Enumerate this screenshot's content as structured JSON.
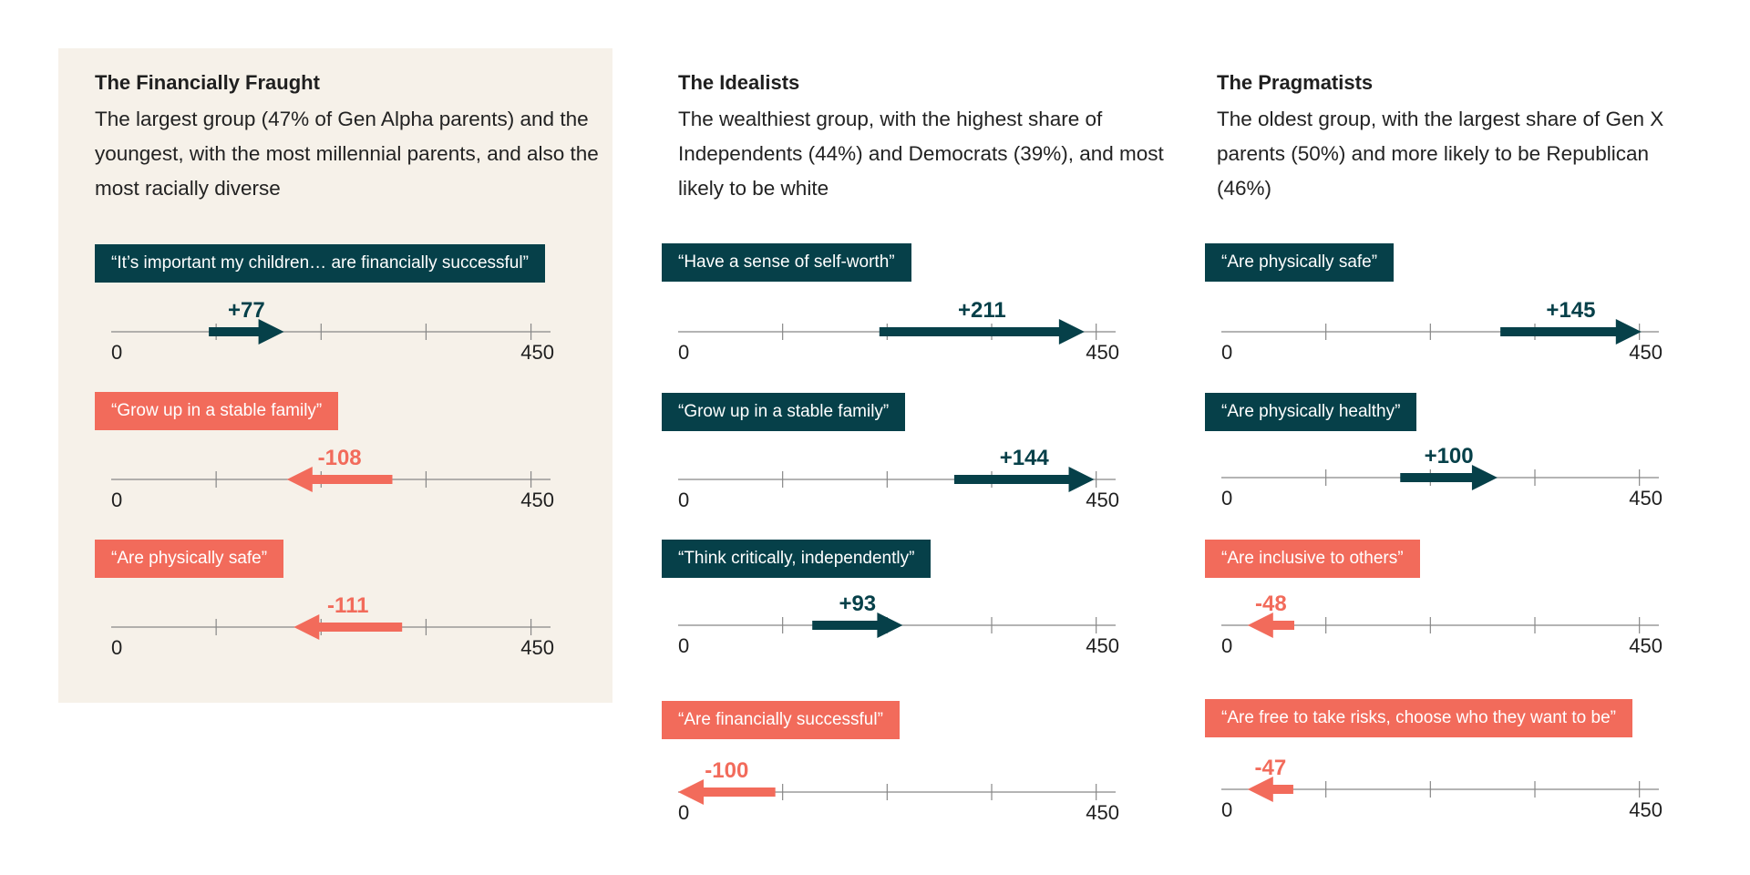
{
  "colors": {
    "positive": "#064049",
    "negative": "#f26b5b",
    "panel_bg": "#f6f1e9",
    "axis": "#888888"
  },
  "axis": {
    "min": 0,
    "max": 450,
    "tick_step": 107.5,
    "min_label": "0",
    "max_label": "450"
  },
  "chart_data": [
    {
      "type": "arrow-range",
      "title": "The Financially Fraught",
      "description": "The largest group (47% of Gen Alpha parents) and the youngest, with the most millennial parents, and also the most racially diverse",
      "items": [
        {
          "label": "“It’s important my children… are financially successful”",
          "value_text": "+77",
          "value": 77,
          "start": 100,
          "end": 177,
          "direction": "positive"
        },
        {
          "label": "“Grow up in a stable family”",
          "value_text": "-108",
          "value": -108,
          "start": 288,
          "end": 180,
          "direction": "negative"
        },
        {
          "label": "“Are physically safe”",
          "value_text": "-111",
          "value": -111,
          "start": 298,
          "end": 187,
          "direction": "negative"
        }
      ]
    },
    {
      "type": "arrow-range",
      "title": "The Idealists",
      "description": "The wealthiest group, with the highest share of Independents (44%) and Democrats (39%), and most likely to be white",
      "items": [
        {
          "label": "“Have a sense of self-worth”",
          "value_text": "+211",
          "value": 211,
          "start": 207,
          "end": 418,
          "direction": "positive"
        },
        {
          "label": "“Grow up in a stable family”",
          "value_text": "+144",
          "value": 144,
          "start": 284,
          "end": 428,
          "direction": "positive"
        },
        {
          "label": "“Think critically, independently”",
          "value_text": "+93",
          "value": 93,
          "start": 138,
          "end": 231,
          "direction": "positive"
        },
        {
          "label": "“Are financially successful”",
          "value_text": "-100",
          "value": -100,
          "start": 100,
          "end": 0,
          "direction": "negative"
        }
      ]
    },
    {
      "type": "arrow-range",
      "title": "The Pragmatists",
      "description": "The oldest group, with the largest share of Gen X parents (50%) and more likely to be Republican (46%)",
      "items": [
        {
          "label": "“Are physically safe”",
          "value_text": "+145",
          "value": 145,
          "start": 287,
          "end": 432,
          "direction": "positive"
        },
        {
          "label": "“Are physically healthy”",
          "value_text": "+100",
          "value": 100,
          "start": 184,
          "end": 284,
          "direction": "positive"
        },
        {
          "label": "“Are inclusive to others”",
          "value_text": "-48",
          "value": -48,
          "start": 75,
          "end": 27,
          "direction": "negative"
        },
        {
          "label": "“Are free to take risks, choose who they want to be”",
          "value_text": "-47",
          "value": -47,
          "start": 74,
          "end": 27,
          "direction": "negative"
        }
      ]
    }
  ]
}
